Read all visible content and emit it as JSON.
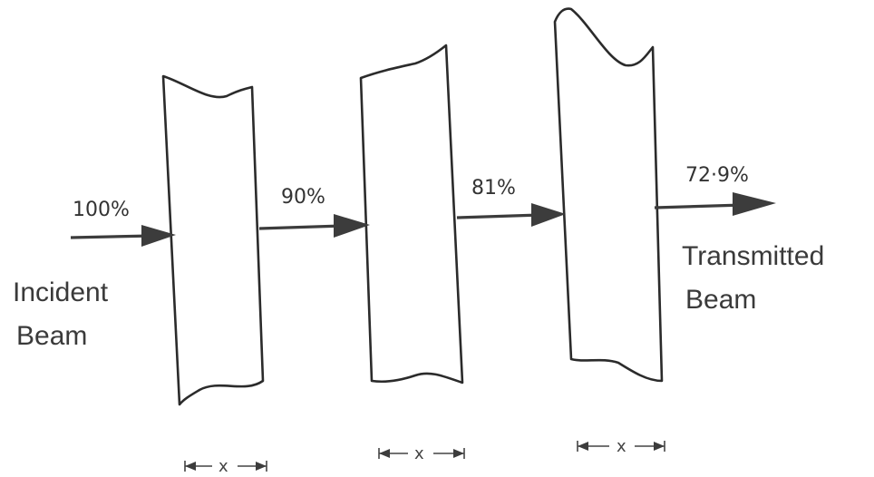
{
  "diagram": {
    "incident_label_line1": "Incident",
    "incident_label_line2": "Beam",
    "transmitted_label_line1": "Transmitted",
    "transmitted_label_line2": "Beam",
    "intensities": [
      "100%",
      "90%",
      "81%",
      "72·9%"
    ],
    "thickness_label": "x"
  }
}
